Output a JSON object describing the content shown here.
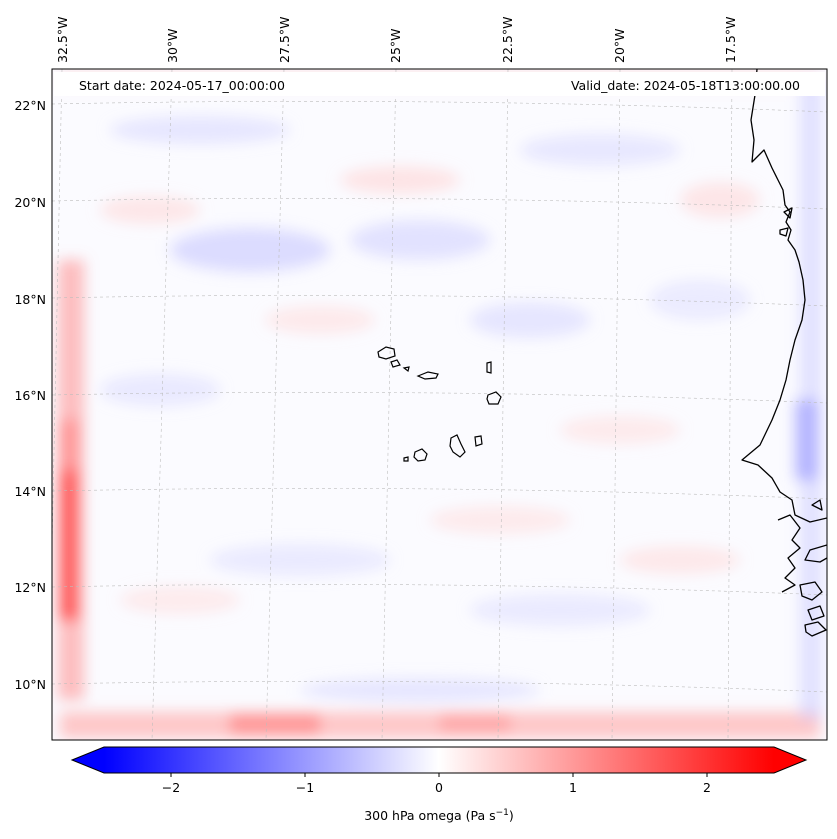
{
  "map": {
    "start_date": "Start date: 2024-05-17_00:00:00",
    "valid_date": "Valid_date: 2024-05-18T13:00:00.00",
    "lon_labels": [
      "32.5°W",
      "30°W",
      "27.5°W",
      "25°W",
      "22.5°W",
      "20°W",
      "17.5°W"
    ],
    "lat_labels": [
      "22°N",
      "20°N",
      "18°N",
      "16°N",
      "14°N",
      "12°N",
      "10°N"
    ],
    "field": "300 hPa omega",
    "gridlines": true
  },
  "colorbar": {
    "label_text": "300 hPa omega (Pa s",
    "label_sup": "−1",
    "label_close": ")",
    "tick_labels": [
      "−2",
      "−1",
      "0",
      "1",
      "2"
    ],
    "ticks": [
      -2,
      -1,
      0,
      1,
      2
    ],
    "range": [
      -2.5,
      2.5
    ],
    "colormap": "bwr",
    "extend": "both",
    "colors": {
      "low": "#0000ff",
      "mid": "#ffffff",
      "high": "#ff0000"
    }
  }
}
